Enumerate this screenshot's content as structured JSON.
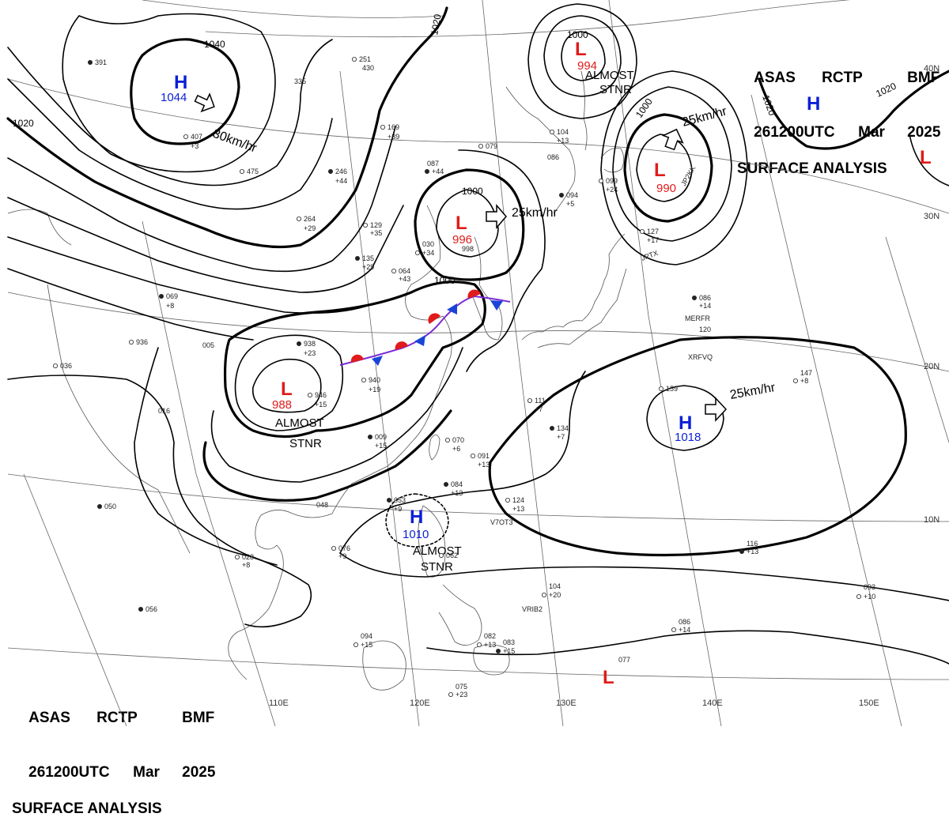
{
  "header": {
    "line1": [
      "ASAS",
      "RCTP",
      "BMF"
    ],
    "line2": [
      "261200UTC",
      "Mar",
      "2025"
    ],
    "line3": "SURFACE ANALYSIS"
  },
  "colors": {
    "high": "#0b1fd6",
    "low": "#e01b1b",
    "isobar": "#000000",
    "warm_front": "#e01b1b",
    "cold_front": "#1a44d8",
    "coast": "#555555"
  },
  "grid_labels": {
    "lon": [
      "110E",
      "120E",
      "130E",
      "140E",
      "150E"
    ],
    "lat": [
      "40N",
      "30N",
      "20N",
      "10N"
    ]
  },
  "isobar_labels": [
    "1040",
    "1020",
    "1020",
    "1020",
    "1020",
    "1000",
    "1000",
    "1000",
    "1000"
  ],
  "pressure_centers": [
    {
      "type": "H",
      "value": "1044",
      "motion": "30km/hr"
    },
    {
      "type": "L",
      "value": "996",
      "motion": "25km/hr"
    },
    {
      "type": "L",
      "value": "990",
      "motion": "25km/hr"
    },
    {
      "type": "L",
      "value": "994",
      "motion": "ALMOST STNR"
    },
    {
      "type": "L",
      "value": "988",
      "motion": "ALMOST STNR"
    },
    {
      "type": "H",
      "value": "1018",
      "motion": "25km/hr"
    },
    {
      "type": "H",
      "value": "1010",
      "motion": "ALMOST STNR"
    },
    {
      "type": "H",
      "value": ""
    },
    {
      "type": "L",
      "value": ""
    },
    {
      "type": "L",
      "value": ""
    }
  ],
  "notes": {
    "stnr1": [
      "ALMOST",
      "STNR"
    ],
    "stnr2": [
      "ALMOST",
      "STNR"
    ],
    "stnr3": [
      "ALMOST",
      "STNR"
    ]
  },
  "ship_ids": [
    "JP2KK",
    "JPTX",
    "MERFR",
    "XRFVQ",
    "V7OT3",
    "VRIB2"
  ],
  "observations": [
    "391",
    "335",
    "251",
    "430",
    "169",
    "+39",
    "246",
    "+44",
    "264",
    "+29",
    "129",
    "+35",
    "135",
    "+29",
    "407",
    "+3",
    "475",
    "087",
    "+44",
    "030",
    "+34",
    "998",
    "064",
    "+43",
    "069",
    "+8",
    "936",
    "005",
    "036",
    "016",
    "938",
    "+23",
    "940",
    "+19",
    "946",
    "+15",
    "009",
    "+15",
    "070",
    "+6",
    "091",
    "+13",
    "084",
    "+13",
    "124",
    "+13",
    "111",
    "+7",
    "134",
    "+7",
    "159",
    "147",
    "+8",
    "120",
    "086",
    "+14",
    "127",
    "+17",
    "099",
    "+24",
    "094",
    "+5",
    "104",
    "+13",
    "079",
    "086",
    "050",
    "048",
    "028",
    "+8",
    "076",
    "+9",
    "056",
    "094",
    "+15",
    "075",
    "+23",
    "083",
    "+15",
    "082",
    "+13",
    "104",
    "+20",
    "116",
    "+13",
    "093",
    "+10",
    "086",
    "+14",
    "077",
    "053",
    "+9",
    "062"
  ]
}
